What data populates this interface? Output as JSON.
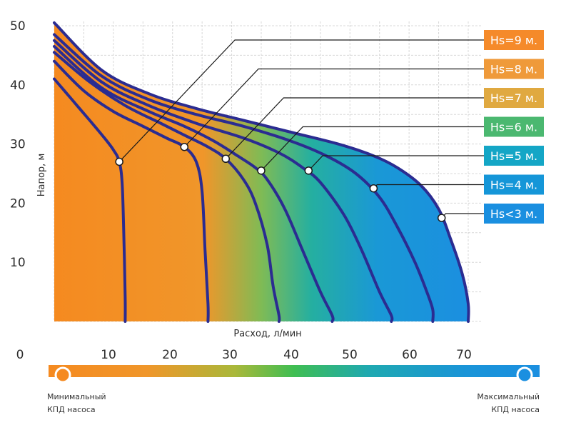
{
  "chart_data": {
    "type": "line",
    "xlabel": "Расход, л/мин",
    "ylabel": "Напор, м",
    "xlim": [
      0,
      70
    ],
    "ylim": [
      0,
      50
    ],
    "y_ticks": [
      "10",
      "20",
      "30",
      "40",
      "50"
    ],
    "x_ticks": [
      "0",
      "10",
      "20",
      "30",
      "40",
      "50",
      "60",
      "70"
    ],
    "grid": true,
    "legend_position": "right",
    "series": [
      {
        "name": "Hs<3 м.",
        "color": "#1a8fe0",
        "marker": [
          65.5,
          17.5
        ],
        "x": [
          0,
          8,
          16,
          24,
          32,
          40,
          48,
          54,
          58,
          62,
          65,
          67,
          69,
          70,
          70
        ],
        "y": [
          50.5,
          42.5,
          38.5,
          36,
          34,
          32,
          30,
          28,
          26,
          23,
          19,
          14,
          8,
          3,
          0
        ]
      },
      {
        "name": "Hs=4 м.",
        "color": "#1596d8",
        "marker": [
          54,
          22.5
        ],
        "x": [
          0,
          8,
          16,
          24,
          32,
          40,
          46,
          51,
          55,
          58,
          61,
          63,
          64,
          64
        ],
        "y": [
          48.5,
          41.5,
          37.5,
          35,
          33,
          30.5,
          28,
          25,
          21,
          16,
          10,
          5,
          2,
          0
        ]
      },
      {
        "name": "Hs=5 м.",
        "color": "#14a6c6",
        "marker": [
          43,
          25.5
        ],
        "x": [
          0,
          8,
          16,
          24,
          32,
          38,
          42,
          45,
          49,
          52,
          55,
          57,
          57
        ],
        "y": [
          47.5,
          40.5,
          36.5,
          33.5,
          31,
          28.5,
          26,
          23.5,
          18,
          12,
          5,
          1,
          0
        ]
      },
      {
        "name": "Hs=6 м.",
        "color": "#4bb870",
        "marker": [
          35,
          25.5
        ],
        "x": [
          0,
          8,
          16,
          22,
          27,
          31,
          34,
          36,
          39,
          42,
          45,
          47,
          47
        ],
        "y": [
          46.5,
          39.5,
          35.5,
          33,
          30.5,
          28,
          26,
          24,
          19,
          12,
          5,
          1,
          0
        ]
      },
      {
        "name": "Hs=7 м.",
        "color": "#e0a940",
        "marker": [
          29,
          27.5
        ],
        "x": [
          0,
          6,
          12,
          18,
          22,
          26,
          29,
          32,
          34,
          36,
          37,
          38,
          38
        ],
        "y": [
          45.5,
          40.5,
          36.5,
          33.5,
          31.5,
          29.5,
          27.5,
          24,
          20,
          13,
          6,
          1,
          0
        ]
      },
      {
        "name": "Hs=8 м.",
        "color": "#ef9a3a",
        "marker": [
          22,
          29.5
        ],
        "x": [
          0,
          5,
          10,
          15,
          19,
          22,
          24,
          25,
          25.5,
          26,
          26
        ],
        "y": [
          44,
          39,
          35.5,
          33,
          31,
          29.5,
          27,
          22,
          12,
          3,
          0
        ]
      },
      {
        "name": "Hs=9 м.",
        "color": "#f58a2a",
        "marker": [
          11,
          27
        ],
        "x": [
          0,
          3,
          6,
          8.5,
          10,
          11,
          11.5,
          11.8,
          12,
          12
        ],
        "y": [
          41,
          37.5,
          34,
          31,
          29,
          27,
          23,
          13,
          4,
          0
        ]
      }
    ]
  },
  "efficiency_scale": {
    "min_label": "Минимальный КПД насоса",
    "max_label": "Максимальный КПД насоса",
    "min_lines": [
      "Минимальный",
      "КПД насоса"
    ],
    "max_lines": [
      "Максимальный",
      "КПД насоса"
    ],
    "gradient_colors": [
      "#f58a20",
      "#f0962a",
      "#a9b83a",
      "#3fbe52",
      "#1fa9b0",
      "#1a94d8",
      "#1b8fe0"
    ]
  },
  "colors": {
    "curve": "#2b2c91",
    "grid": "#d8d8d8",
    "orange": "#f58a20",
    "green": "#3fbe52",
    "blue": "#1b8fe0"
  }
}
